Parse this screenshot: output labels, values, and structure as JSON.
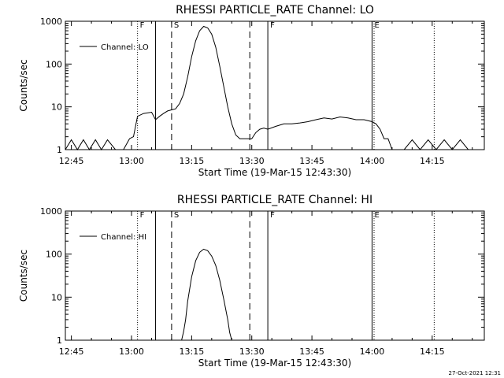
{
  "footer_timestamp": "27-Oct-2021 12:31",
  "chart_data": [
    {
      "type": "line",
      "title": "RHESSI PARTICLE_RATE Channel: LO",
      "xlabel": "Start Time (19-Mar-15 12:43:30)",
      "ylabel": "Counts/sec",
      "yscale": "log",
      "xlim": [
        "12:43:30",
        "14:28:00"
      ],
      "ylim": [
        1,
        1000
      ],
      "xticks": [
        "12:45",
        "13:00",
        "13:15",
        "13:30",
        "13:45",
        "14:00",
        "14:15"
      ],
      "yticks": [
        "1",
        "10",
        "100",
        "1000"
      ],
      "legend": "top-left",
      "markers": [
        {
          "time": "13:01:30",
          "label": "F",
          "style": "dotted"
        },
        {
          "time": "13:06:00",
          "label": "",
          "style": "solid"
        },
        {
          "time": "13:10:00",
          "label": "S",
          "style": "dashed"
        },
        {
          "time": "13:29:30",
          "label": "",
          "style": "dashed"
        },
        {
          "time": "13:34:00",
          "label": "F",
          "style": "solid"
        },
        {
          "time": "14:00:00",
          "label": "E",
          "style": "solid"
        },
        {
          "time": "14:00:30",
          "label": "",
          "style": "dotted"
        },
        {
          "time": "14:15:30",
          "label": "",
          "style": "dotted"
        }
      ],
      "series": [
        {
          "name": "Channel: LO",
          "x": [
            "12:43:30",
            "12:45:00",
            "12:46:30",
            "12:48:00",
            "12:49:30",
            "12:51:00",
            "12:52:30",
            "12:54:00",
            "12:56:00",
            "12:58:00",
            "12:59:30",
            "13:00:30",
            "13:01:30",
            "13:03:00",
            "13:05:00",
            "13:06:00",
            "13:07:00",
            "13:08:00",
            "13:09:00",
            "13:10:00",
            "13:11:00",
            "13:12:00",
            "13:13:00",
            "13:14:00",
            "13:15:00",
            "13:16:00",
            "13:17:00",
            "13:18:00",
            "13:19:00",
            "13:20:00",
            "13:21:00",
            "13:22:00",
            "13:23:00",
            "13:24:00",
            "13:25:00",
            "13:26:00",
            "13:27:00",
            "13:28:00",
            "13:29:00",
            "13:30:00",
            "13:31:00",
            "13:32:00",
            "13:33:00",
            "13:34:00",
            "13:36:00",
            "13:38:00",
            "13:40:00",
            "13:42:00",
            "13:44:00",
            "13:46:00",
            "13:48:00",
            "13:50:00",
            "13:52:00",
            "13:54:00",
            "13:56:00",
            "13:58:00",
            "14:00:00",
            "14:01:00",
            "14:02:00",
            "14:03:00",
            "14:04:00",
            "14:05:00",
            "14:06:00",
            "14:08:00",
            "14:10:00",
            "14:12:00",
            "14:14:00",
            "14:16:00",
            "14:18:00",
            "14:20:00",
            "14:22:00",
            "14:24:00",
            "14:26:00",
            "14:28:00"
          ],
          "y": [
            1,
            1.7,
            1,
            1.7,
            1,
            1.7,
            1,
            1.7,
            1,
            1,
            1.8,
            2,
            6,
            7,
            7.5,
            5,
            6,
            7,
            8,
            8.5,
            9,
            12,
            20,
            50,
            150,
            350,
            600,
            760,
            700,
            500,
            250,
            90,
            30,
            10,
            4,
            2.2,
            1.8,
            1.8,
            1.8,
            1.8,
            2.5,
            3,
            3.2,
            3,
            3.5,
            4,
            4,
            4.2,
            4.5,
            5,
            5.5,
            5.2,
            5.8,
            5.5,
            5,
            5,
            4.5,
            4,
            3,
            1.8,
            1.8,
            1,
            1,
            1,
            1.7,
            1,
            1.7,
            1,
            1.7,
            1,
            1.7,
            1,
            1,
            1
          ]
        }
      ]
    },
    {
      "type": "line",
      "title": "RHESSI PARTICLE_RATE Channel: HI",
      "xlabel": "Start Time (19-Mar-15 12:43:30)",
      "ylabel": "Counts/sec",
      "yscale": "log",
      "xlim": [
        "12:43:30",
        "14:28:00"
      ],
      "ylim": [
        1,
        1000
      ],
      "xticks": [
        "12:45",
        "13:00",
        "13:15",
        "13:30",
        "13:45",
        "14:00",
        "14:15"
      ],
      "yticks": [
        "1",
        "10",
        "100",
        "1000"
      ],
      "legend": "top-left",
      "markers": [
        {
          "time": "13:01:30",
          "label": "F",
          "style": "dotted"
        },
        {
          "time": "13:06:00",
          "label": "",
          "style": "solid"
        },
        {
          "time": "13:10:00",
          "label": "S",
          "style": "dashed"
        },
        {
          "time": "13:29:30",
          "label": "",
          "style": "dashed"
        },
        {
          "time": "13:34:00",
          "label": "F",
          "style": "solid"
        },
        {
          "time": "14:00:00",
          "label": "E",
          "style": "solid"
        },
        {
          "time": "14:00:30",
          "label": "",
          "style": "dotted"
        },
        {
          "time": "14:15:30",
          "label": "",
          "style": "dotted"
        }
      ],
      "series": [
        {
          "name": "Channel: HI",
          "x": [
            "13:12:30",
            "13:13:00",
            "13:13:30",
            "13:14:00",
            "13:15:00",
            "13:16:00",
            "13:17:00",
            "13:18:00",
            "13:19:00",
            "13:20:00",
            "13:21:00",
            "13:22:00",
            "13:23:00",
            "13:24:00",
            "13:24:30",
            "13:25:00"
          ],
          "y": [
            1,
            1.6,
            3,
            8,
            30,
            70,
            110,
            130,
            120,
            90,
            55,
            25,
            9,
            3,
            1.5,
            1
          ]
        }
      ]
    }
  ]
}
